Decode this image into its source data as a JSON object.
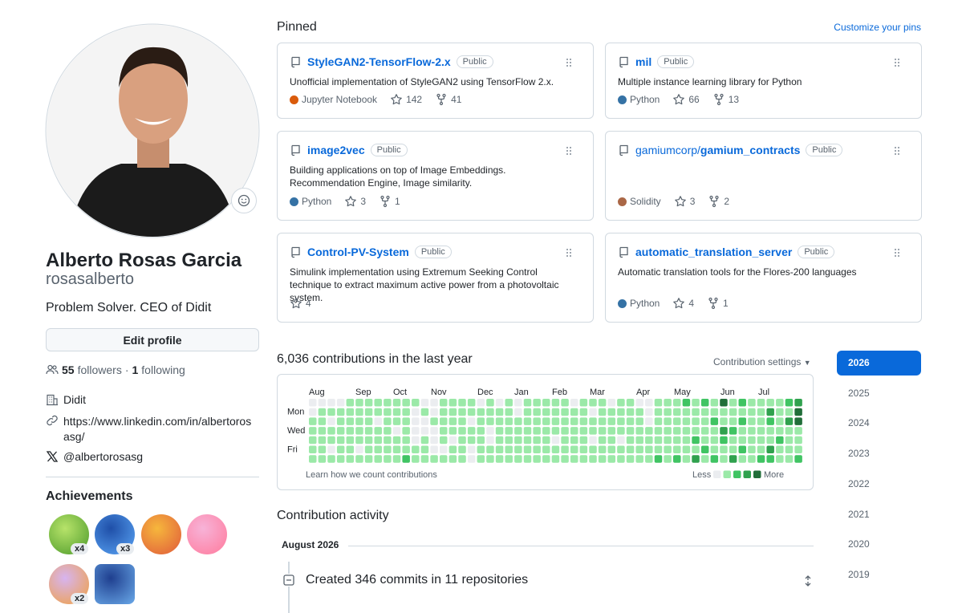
{
  "profile": {
    "name": "Alberto Rosas Garcia",
    "username": "rosasalberto",
    "bio": "Problem Solver. CEO of Didit",
    "edit_button": "Edit profile",
    "followers": 55,
    "followers_label": "followers",
    "separator": "·",
    "following": 1,
    "following_label": "following",
    "company": "Didit",
    "website": "https://www.linkedin.com/in/albertorosasg/",
    "twitter": "@albertorosasg"
  },
  "achievements": {
    "title": "Achievements",
    "badges": [
      "x4",
      "x3",
      null,
      null,
      "x2",
      null
    ]
  },
  "pinned": {
    "title": "Pinned",
    "customize": "Customize your pins",
    "repos": [
      {
        "name": "StyleGAN2-TensorFlow-2.x",
        "visibility": "Public",
        "description": "Unofficial implementation of StyleGAN2 using TensorFlow 2.x.",
        "language": "Jupyter Notebook",
        "language_color": "#da5b0b",
        "stars": 142,
        "forks": 41
      },
      {
        "name": "mil",
        "visibility": "Public",
        "description": "Multiple instance learning library for Python",
        "language": "Python",
        "language_color": "#3572a5",
        "stars": 66,
        "forks": 13
      },
      {
        "name": "image2vec",
        "visibility": "Public",
        "description": "Building applications on top of Image Embeddings. Recommendation Engine, Image similarity.",
        "language": "Python",
        "language_color": "#3572a5",
        "stars": 3,
        "forks": 1
      },
      {
        "owner": "gamiumcorp/",
        "name": "gamium_contracts",
        "visibility": "Public",
        "language": "Solidity",
        "language_color": "#aa6746",
        "stars": 3,
        "forks": 2
      },
      {
        "name": "Control-PV-System",
        "visibility": "Public",
        "description": "Simulink implementation using Extremum Seeking Control technique to extract maximum active power from a photovoltaic system.",
        "stars": 4
      },
      {
        "name": "automatic_translation_server",
        "visibility": "Public",
        "description": "Automatic translation tools for the Flores-200 languages",
        "language": "Python",
        "language_color": "#3572a5",
        "stars": 4,
        "forks": 1
      }
    ]
  },
  "contributions": {
    "title": "6,036 contributions in the last year",
    "settings": "Contribution settings",
    "months": [
      "Aug",
      "Sep",
      "Oct",
      "Nov",
      "Dec",
      "Jan",
      "Feb",
      "Mar",
      "Apr",
      "May",
      "Jun",
      "Jul"
    ],
    "days": [
      "Mon",
      "Wed",
      "Fri"
    ],
    "learn": "Learn how we count contributions",
    "less": "Less",
    "more": "More",
    "level_colors": [
      "#ebedf0",
      "#9be9a8",
      "#40c463",
      "#30a14e",
      "#216e39"
    ],
    "weeks": [
      [
        0,
        0,
        1,
        1,
        1,
        1,
        1
      ],
      [
        0,
        1,
        1,
        1,
        1,
        1,
        1
      ],
      [
        0,
        1,
        0,
        1,
        1,
        0,
        1
      ],
      [
        0,
        1,
        1,
        1,
        1,
        1,
        1
      ],
      [
        1,
        1,
        1,
        1,
        1,
        1,
        1
      ],
      [
        1,
        1,
        1,
        1,
        1,
        0,
        1
      ],
      [
        1,
        1,
        1,
        1,
        1,
        1,
        1
      ],
      [
        1,
        1,
        0,
        1,
        1,
        1,
        1
      ],
      [
        1,
        1,
        1,
        1,
        1,
        1,
        1
      ],
      [
        1,
        1,
        1,
        0,
        1,
        1,
        1
      ],
      [
        1,
        1,
        1,
        1,
        1,
        1,
        2
      ],
      [
        1,
        0,
        0,
        0,
        0,
        1,
        1
      ],
      [
        0,
        1,
        0,
        0,
        1,
        1,
        1
      ],
      [
        0,
        0,
        1,
        0,
        0,
        0,
        1
      ],
      [
        1,
        1,
        1,
        1,
        1,
        0,
        1
      ],
      [
        1,
        1,
        1,
        1,
        0,
        1,
        1
      ],
      [
        1,
        1,
        1,
        1,
        1,
        1,
        1
      ],
      [
        1,
        1,
        0,
        1,
        1,
        0,
        0
      ],
      [
        0,
        1,
        1,
        1,
        1,
        1,
        1
      ],
      [
        1,
        1,
        1,
        0,
        0,
        1,
        1
      ],
      [
        0,
        1,
        1,
        1,
        1,
        1,
        1
      ],
      [
        1,
        1,
        1,
        1,
        1,
        1,
        1
      ],
      [
        0,
        0,
        1,
        1,
        1,
        1,
        1
      ],
      [
        1,
        1,
        1,
        1,
        1,
        1,
        1
      ],
      [
        1,
        1,
        1,
        1,
        1,
        1,
        1
      ],
      [
        1,
        1,
        1,
        1,
        1,
        1,
        1
      ],
      [
        1,
        1,
        1,
        1,
        0,
        1,
        1
      ],
      [
        1,
        1,
        1,
        1,
        1,
        1,
        1
      ],
      [
        0,
        1,
        1,
        1,
        1,
        1,
        1
      ],
      [
        1,
        1,
        1,
        1,
        1,
        1,
        1
      ],
      [
        1,
        0,
        1,
        1,
        0,
        1,
        1
      ],
      [
        1,
        1,
        1,
        1,
        1,
        1,
        1
      ],
      [
        0,
        1,
        1,
        1,
        1,
        1,
        1
      ],
      [
        1,
        1,
        1,
        1,
        0,
        1,
        1
      ],
      [
        1,
        1,
        1,
        1,
        1,
        1,
        1
      ],
      [
        0,
        1,
        1,
        1,
        1,
        1,
        1
      ],
      [
        0,
        0,
        0,
        1,
        1,
        1,
        1
      ],
      [
        1,
        1,
        1,
        1,
        1,
        1,
        2
      ],
      [
        1,
        1,
        1,
        1,
        1,
        1,
        1
      ],
      [
        1,
        1,
        1,
        1,
        1,
        1,
        2
      ],
      [
        2,
        1,
        1,
        1,
        1,
        1,
        1
      ],
      [
        1,
        1,
        1,
        1,
        2,
        1,
        3
      ],
      [
        2,
        1,
        1,
        1,
        1,
        2,
        1
      ],
      [
        1,
        1,
        2,
        1,
        1,
        1,
        2
      ],
      [
        4,
        1,
        1,
        3,
        2,
        1,
        1
      ],
      [
        1,
        1,
        1,
        2,
        1,
        1,
        3
      ],
      [
        2,
        1,
        2,
        1,
        1,
        2,
        1
      ],
      [
        1,
        1,
        1,
        1,
        1,
        1,
        1
      ],
      [
        1,
        1,
        1,
        1,
        1,
        1,
        2
      ],
      [
        1,
        3,
        2,
        1,
        1,
        3,
        2
      ],
      [
        1,
        1,
        1,
        1,
        2,
        1,
        1
      ],
      [
        2,
        1,
        3,
        1,
        1,
        1,
        1
      ],
      [
        3,
        4,
        4,
        1,
        1,
        1,
        2
      ]
    ],
    "years": [
      2026,
      2025,
      2024,
      2023,
      2022,
      2021,
      2020,
      2019
    ],
    "selected_year_index": 0
  },
  "activity": {
    "title": "Contribution activity",
    "month": "August 2026",
    "item": "Created 346 commits in 11 repositories"
  }
}
